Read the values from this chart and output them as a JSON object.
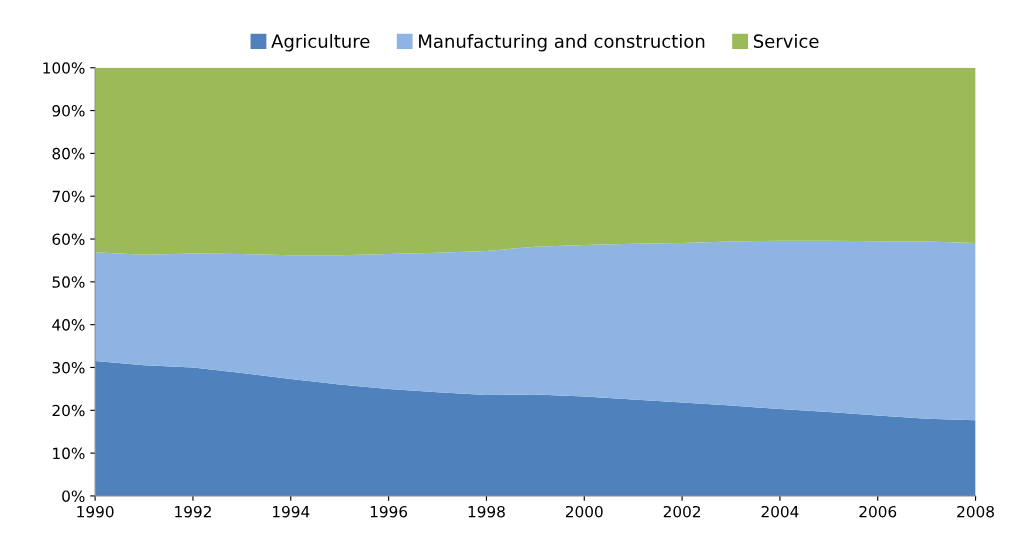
{
  "chart_data": {
    "type": "area",
    "stacked": true,
    "x": [
      1990,
      1991,
      1992,
      1993,
      1994,
      1995,
      1996,
      1997,
      1998,
      1999,
      2000,
      2001,
      2002,
      2003,
      2004,
      2005,
      2006,
      2007,
      2008
    ],
    "series": [
      {
        "name": "Agriculture",
        "color": "#4f81bd",
        "values": [
          31.5,
          30.5,
          30.0,
          28.7,
          27.3,
          26.0,
          25.0,
          24.2,
          23.6,
          23.7,
          23.2,
          22.5,
          21.8,
          21.1,
          20.3,
          19.6,
          18.8,
          18.0,
          17.7
        ]
      },
      {
        "name": "Manufacturing and construction",
        "color": "#8eb4e3",
        "values": [
          25.4,
          25.8,
          26.6,
          27.8,
          28.9,
          30.2,
          31.5,
          32.6,
          33.6,
          34.5,
          35.4,
          36.4,
          37.3,
          38.3,
          39.3,
          40.0,
          40.7,
          41.4,
          41.4
        ]
      },
      {
        "name": "Service",
        "color": "#9bbb59",
        "values": [
          43.1,
          43.7,
          43.4,
          43.5,
          43.8,
          43.8,
          43.5,
          43.2,
          42.8,
          41.8,
          41.4,
          41.1,
          40.9,
          40.6,
          40.4,
          40.4,
          40.5,
          40.6,
          40.9
        ]
      }
    ],
    "xlim": [
      1990,
      2008
    ],
    "xticks": [
      1990,
      1992,
      1994,
      1996,
      1998,
      2000,
      2002,
      2004,
      2006,
      2008
    ],
    "ylim": [
      0,
      100
    ],
    "yticks": [
      {
        "value": 0,
        "label": "0%"
      },
      {
        "value": 10,
        "label": "10%"
      },
      {
        "value": 20,
        "label": "20%"
      },
      {
        "value": 30,
        "label": "30%"
      },
      {
        "value": 40,
        "label": "40%"
      },
      {
        "value": 50,
        "label": "50%"
      },
      {
        "value": 60,
        "label": "60%"
      },
      {
        "value": 70,
        "label": "70%"
      },
      {
        "value": 80,
        "label": "80%"
      },
      {
        "value": 90,
        "label": "90%"
      },
      {
        "value": 100,
        "label": "100%"
      }
    ],
    "grid": false,
    "legend": "top"
  }
}
